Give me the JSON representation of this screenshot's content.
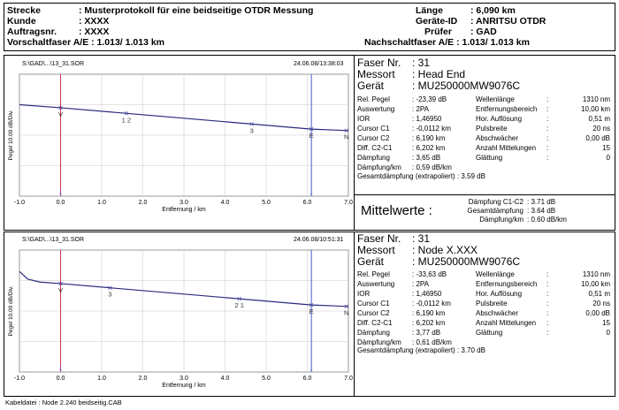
{
  "header": {
    "strecke_label": "Strecke",
    "strecke_value": ": Musterprotokoll für eine beidseitige OTDR Messung",
    "kunde_label": "Kunde",
    "kunde_value": ": XXXX",
    "auftrag_label": "Auftragsnr.",
    "auftrag_value": ": XXXX",
    "vorschalt": "Vorschaltfaser A/E : 1.013/  1.013 km",
    "laenge_label": "Länge",
    "laenge_value": ":  6,090 km",
    "geraete_label": "Geräte-ID",
    "geraete_value": ": ANRITSU OTDR",
    "pruefer_label": "Prüfer",
    "pruefer_value": ": GAD",
    "nachschalt": "Nachschaltfaser A/E : 1.013/  1.013 km"
  },
  "traces": [
    {
      "file": "S:\\GAD\\...\\13_31.SOR",
      "timestamp": "24.06.08/13:38:03",
      "faser_label": "Faser Nr.",
      "faser_value": ": 31",
      "messort_label": "Messort",
      "messort_value": ": Head End",
      "geraet_label": "Gerät",
      "geraet_value": ": MU250000MW9076C",
      "params_left": [
        {
          "k": "Rel. Pegel",
          "v": ":  -23,39 dB"
        },
        {
          "k": "Auswertung",
          "v": ":      2PA"
        },
        {
          "k": "IOR",
          "v": ":  1,46950"
        },
        {
          "k": "Cursor C1",
          "v": ":  -0,0112 km"
        },
        {
          "k": "Cursor C2",
          "v": ":   6,190 km"
        },
        {
          "k": "Diff. C2-C1",
          "v": ":   6,202 km"
        },
        {
          "k": "Dämpfung",
          "v": ":     3,65 dB"
        },
        {
          "k": "Dämpfung/km",
          "v": ":   0,59 dB/km"
        }
      ],
      "params_right": [
        {
          "k": "Wellenlänge",
          "v": ":",
          "val": "1310 nm"
        },
        {
          "k": "Entfernungsbereich",
          "v": ":",
          "val": "10,00 km"
        },
        {
          "k": "Hor. Auflösung",
          "v": ":",
          "val": "0,51 m"
        },
        {
          "k": "Pulsbreite",
          "v": ":",
          "val": "20 ns"
        },
        {
          "k": "Abschwächer",
          "v": ":",
          "val": "0,00 dB"
        },
        {
          "k": "Anzahl Mittelungen",
          "v": ":",
          "val": "15"
        },
        {
          "k": "Glättung",
          "v": ":",
          "val": "0"
        }
      ],
      "gesamt": "Gesamtdämpfung (extrapoliert) :  3.59 dB"
    },
    {
      "file": "S:\\GAD\\...\\13_31.SOR",
      "timestamp": "24.06.08/10:51:31",
      "faser_label": "Faser Nr.",
      "faser_value": ": 31",
      "messort_label": "Messort",
      "messort_value": ": Node X.XXX",
      "geraet_label": "Gerät",
      "geraet_value": ": MU250000MW9076C",
      "params_left": [
        {
          "k": "Rel. Pegel",
          "v": ":  -33,63 dB"
        },
        {
          "k": "Auswertung",
          "v": ":      2PA"
        },
        {
          "k": "IOR",
          "v": ":  1,46950"
        },
        {
          "k": "Cursor C1",
          "v": ":  -0,0112 km"
        },
        {
          "k": "Cursor C2",
          "v": ":   6,190 km"
        },
        {
          "k": "Diff. C2-C1",
          "v": ":   6,202 km"
        },
        {
          "k": "Dämpfung",
          "v": ":     3,77 dB"
        },
        {
          "k": "Dämpfung/km",
          "v": ":   0,61 dB/km"
        }
      ],
      "params_right": [
        {
          "k": "Wellenlänge",
          "v": ":",
          "val": "1310 nm"
        },
        {
          "k": "Entfernungsbereich",
          "v": ":",
          "val": "10,00 km"
        },
        {
          "k": "Hor. Auflösung",
          "v": ":",
          "val": "0,51 m"
        },
        {
          "k": "Pulsbreite",
          "v": ":",
          "val": "20 ns"
        },
        {
          "k": "Abschwächer",
          "v": ":",
          "val": "0,00 dB"
        },
        {
          "k": "Anzahl Mittelungen",
          "v": ":",
          "val": "15"
        },
        {
          "k": "Glättung",
          "v": ":",
          "val": "0"
        }
      ],
      "gesamt": "Gesamtdämpfung (extrapoliert) :  3.70 dB"
    }
  ],
  "mittelwerte": {
    "title": "Mittelwerte :",
    "rows": [
      {
        "k": "Dämpfung C1-C2",
        "v": ":  3.71 dB"
      },
      {
        "k": "Gesamtdämpfung",
        "v": ":  3.64 dB"
      },
      {
        "k": "Dämpfung/km",
        "v": ":  0.60 dB/km"
      }
    ]
  },
  "footer": "Kabeldatei : Node 2.240 beidseitig.CAB",
  "chart_data": [
    {
      "type": "line",
      "xlabel": "Entfernung / km",
      "ylabel": "Pegel  10.00 dB/Div.",
      "xlim": [
        -1.0,
        7.0
      ],
      "xticks": [
        "-1.0",
        "0.0",
        "1.0",
        "2.0",
        "3.0",
        "4.0",
        "5.0",
        "6.0",
        "7.0"
      ],
      "trace": {
        "x": [
          -1.0,
          0.0,
          6.1,
          7.0
        ],
        "y": [
          -2.0,
          -2.2,
          -3.6,
          -3.7
        ]
      },
      "ylim": [
        -8,
        0
      ],
      "markers": [
        {
          "label": "V",
          "x": 0.0
        },
        {
          "label": "1 2",
          "x": 1.6
        },
        {
          "label": "3",
          "x": 4.65
        },
        {
          "label": "E",
          "x": 6.1
        },
        {
          "label": "N",
          "x": 6.95
        }
      ],
      "cursors_km": [
        0.0,
        6.1
      ]
    },
    {
      "type": "line",
      "xlabel": "Entfernung / km",
      "ylabel": "Pegel  10.00 dB/Div.",
      "xlim": [
        -1.0,
        7.0
      ],
      "xticks": [
        "-1.0",
        "0.0",
        "1.0",
        "2.0",
        "3.0",
        "4.0",
        "5.0",
        "6.0",
        "7.0"
      ],
      "trace": {
        "x": [
          -1.0,
          -0.8,
          -0.5,
          0.0,
          6.1,
          7.0
        ],
        "y": [
          -1.4,
          -1.9,
          -2.1,
          -2.2,
          -3.6,
          -3.7
        ]
      },
      "ylim": [
        -8,
        0
      ],
      "markers": [
        {
          "label": "V",
          "x": 0.0
        },
        {
          "label": "3",
          "x": 1.2
        },
        {
          "label": "2 1",
          "x": 4.35
        },
        {
          "label": "E",
          "x": 6.1
        },
        {
          "label": "N",
          "x": 6.95
        }
      ],
      "cursors_km": [
        0.0,
        6.1
      ]
    }
  ]
}
